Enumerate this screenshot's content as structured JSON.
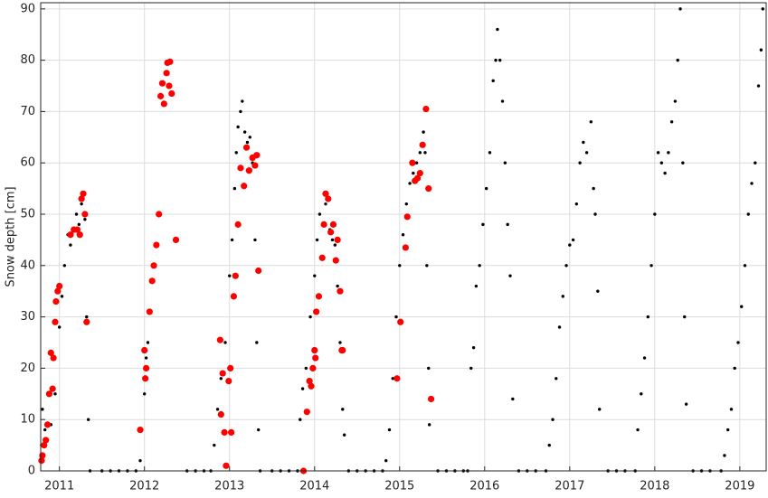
{
  "chart_data": {
    "type": "scatter",
    "ylabel": "Snow depth [cm]",
    "xlim": [
      2010.78,
      2019.31
    ],
    "ylim": [
      0,
      91.2
    ],
    "xticks": [
      2011,
      2012,
      2013,
      2014,
      2015,
      2016,
      2017,
      2018,
      2019
    ],
    "yticks": [
      0,
      10,
      20,
      30,
      40,
      50,
      60,
      70,
      80,
      90
    ],
    "grid": true,
    "series": [
      {
        "color": "#000000",
        "size": 1.7,
        "x": [
          2010.79,
          2010.8,
          2010.81,
          2010.83,
          2010.86,
          2010.9,
          2010.95,
          2011.0,
          2011.03,
          2011.06,
          2011.1,
          2011.13,
          2011.16,
          2011.2,
          2011.23,
          2011.26,
          2011.28,
          2011.3,
          2011.32,
          2011.34,
          2011.36,
          2011.5,
          2011.6,
          2011.7,
          2011.8,
          2011.9,
          2011.95,
          2011.97,
          2012.0,
          2012.02,
          2012.04,
          2012.5,
          2012.6,
          2012.7,
          2012.78,
          2012.82,
          2012.86,
          2012.9,
          2012.95,
          2013.0,
          2013.03,
          2013.06,
          2013.08,
          2013.1,
          2013.13,
          2013.15,
          2013.18,
          2013.21,
          2013.24,
          2013.27,
          2013.3,
          2013.32,
          2013.34,
          2013.36,
          2013.5,
          2013.6,
          2013.7,
          2013.8,
          2013.83,
          2013.86,
          2013.9,
          2013.95,
          2014.0,
          2014.03,
          2014.06,
          2014.1,
          2014.13,
          2014.15,
          2014.18,
          2014.21,
          2014.24,
          2014.27,
          2014.3,
          2014.33,
          2014.35,
          2014.4,
          2014.5,
          2014.6,
          2014.7,
          2014.8,
          2014.84,
          2014.88,
          2014.92,
          2014.96,
          2015.0,
          2015.04,
          2015.08,
          2015.12,
          2015.16,
          2015.2,
          2015.24,
          2015.28,
          2015.3,
          2015.32,
          2015.34,
          2015.35,
          2015.45,
          2015.55,
          2015.65,
          2015.75,
          2015.8,
          2015.84,
          2015.87,
          2015.9,
          2015.94,
          2015.98,
          2016.02,
          2016.06,
          2016.1,
          2016.13,
          2016.15,
          2016.18,
          2016.21,
          2016.24,
          2016.27,
          2016.3,
          2016.33,
          2016.4,
          2016.5,
          2016.6,
          2016.72,
          2016.76,
          2016.8,
          2016.84,
          2016.88,
          2016.92,
          2016.96,
          2017.0,
          2017.04,
          2017.08,
          2017.12,
          2017.16,
          2017.2,
          2017.25,
          2017.28,
          2017.3,
          2017.33,
          2017.35,
          2017.45,
          2017.55,
          2017.65,
          2017.77,
          2017.8,
          2017.84,
          2017.88,
          2017.92,
          2017.96,
          2018.0,
          2018.04,
          2018.08,
          2018.12,
          2018.16,
          2018.2,
          2018.24,
          2018.27,
          2018.3,
          2018.33,
          2018.35,
          2018.37,
          2018.45,
          2018.55,
          2018.65,
          2018.78,
          2018.82,
          2018.86,
          2018.9,
          2018.94,
          2018.98,
          2019.02,
          2019.06,
          2019.1,
          2019.14,
          2019.18,
          2019.22,
          2019.25,
          2019.27
        ],
        "values": [
          5,
          12,
          3,
          8,
          6,
          9,
          15,
          28,
          34,
          40,
          46,
          44,
          47,
          50,
          48,
          52,
          54,
          49,
          30,
          10,
          0,
          0,
          0,
          0,
          0,
          0,
          2,
          8,
          15,
          22,
          25,
          0,
          0,
          0,
          0,
          5,
          12,
          18,
          25,
          38,
          45,
          55,
          62,
          67,
          70,
          72,
          66,
          64,
          65,
          60,
          45,
          25,
          8,
          0,
          0,
          0,
          0,
          0,
          10,
          16,
          20,
          30,
          38,
          45,
          50,
          48,
          52,
          54,
          47,
          45,
          44,
          36,
          25,
          12,
          7,
          0,
          0,
          0,
          0,
          0,
          2,
          8,
          18,
          30,
          40,
          46,
          52,
          56,
          58,
          60,
          62,
          66,
          62,
          40,
          20,
          9,
          0,
          0,
          0,
          0,
          0,
          20,
          24,
          36,
          40,
          48,
          55,
          62,
          76,
          80,
          86,
          80,
          72,
          60,
          48,
          38,
          14,
          0,
          0,
          0,
          0,
          5,
          10,
          18,
          28,
          34,
          40,
          44,
          45,
          52,
          60,
          64,
          62,
          68,
          55,
          50,
          35,
          12,
          0,
          0,
          0,
          0,
          8,
          15,
          22,
          30,
          40,
          50,
          62,
          60,
          58,
          62,
          68,
          72,
          80,
          90,
          60,
          30,
          13,
          0,
          0,
          0,
          0,
          3,
          8,
          12,
          20,
          25,
          32,
          40,
          50,
          56,
          60,
          75,
          82,
          90
        ]
      },
      {
        "color": "#ff0000",
        "size": 3.6,
        "x": [
          2010.79,
          2010.8,
          2010.82,
          2010.84,
          2010.86,
          2010.88,
          2010.9,
          2010.92,
          2010.93,
          2010.95,
          2010.96,
          2010.98,
          2011.0,
          2011.13,
          2011.17,
          2011.21,
          2011.24,
          2011.26,
          2011.28,
          2011.3,
          2011.32,
          2011.95,
          2012.0,
          2012.01,
          2012.02,
          2012.06,
          2012.09,
          2012.11,
          2012.14,
          2012.17,
          2012.19,
          2012.21,
          2012.23,
          2012.26,
          2012.27,
          2012.3,
          2012.29,
          2012.32,
          2012.37,
          2012.89,
          2012.9,
          2012.92,
          2012.94,
          2012.96,
          2012.99,
          2013.01,
          2013.02,
          2013.05,
          2013.07,
          2013.1,
          2013.13,
          2013.17,
          2013.2,
          2013.23,
          2013.27,
          2013.3,
          2013.32,
          2013.34,
          2013.87,
          2013.91,
          2013.94,
          2013.96,
          2013.98,
          2014.0,
          2014.01,
          2014.02,
          2014.05,
          2014.09,
          2014.11,
          2014.13,
          2014.16,
          2014.19,
          2014.22,
          2014.25,
          2014.27,
          2014.3,
          2014.32,
          2014.33,
          2014.97,
          2015.01,
          2015.07,
          2015.09,
          2015.15,
          2015.18,
          2015.21,
          2015.24,
          2015.27,
          2015.31,
          2015.34,
          2015.37
        ],
        "values": [
          2,
          3,
          5,
          6,
          9,
          15,
          23,
          16,
          22,
          29,
          33,
          35,
          36,
          46,
          47,
          47,
          46,
          53,
          54,
          50,
          29,
          8,
          23.5,
          18,
          20,
          31,
          37,
          40,
          44,
          50,
          73,
          75.5,
          71.5,
          77.5,
          79.5,
          79.7,
          75,
          73.5,
          45,
          25.5,
          11,
          19,
          7.5,
          1,
          17.5,
          20,
          7.5,
          34,
          38,
          48,
          59,
          55.5,
          63,
          58.5,
          61,
          59.5,
          61.5,
          39,
          0,
          11.5,
          17.5,
          16.5,
          20,
          23.5,
          22,
          31,
          34,
          41.5,
          48,
          54,
          53,
          46.5,
          48,
          41,
          45,
          35,
          23.5,
          23.5,
          18,
          29,
          43.5,
          49.5,
          60,
          56.5,
          57,
          58,
          63.5,
          70.5,
          55,
          14
        ]
      }
    ]
  }
}
